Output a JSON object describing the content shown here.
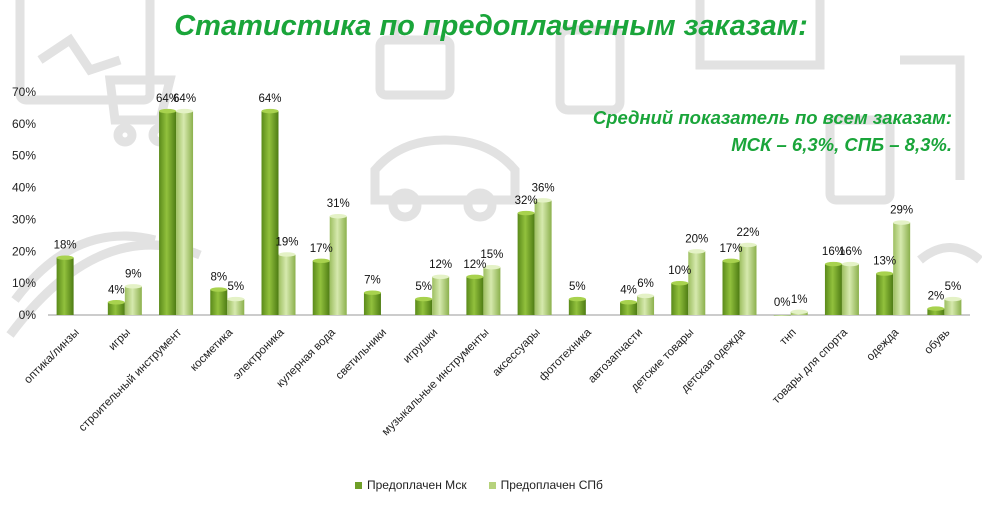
{
  "title": "Статистика по предоплаченным заказам:",
  "subnote": {
    "line1": "Средний показатель по всем заказам:",
    "line2": "МСК – 6,3%, СПБ – 8,3%."
  },
  "colors": {
    "title": "#1aa53a",
    "msk_top": "#92c13d",
    "msk_bottom": "#5a8a1a",
    "spb_top": "#d2e6a8",
    "spb_bottom": "#92b856",
    "background_art": "#d8d8d8"
  },
  "chart_data": {
    "type": "bar",
    "categories": [
      "оптика/линзы",
      "игры",
      "строительный инструмент",
      "косметика",
      "электроника",
      "кулерная вода",
      "светильники",
      "игрушки",
      "музыкальные инструменты",
      "аксессуары",
      "фототехника",
      "автозапчасти",
      "детские товары",
      "детская одежда",
      "тнп",
      "товары для спорта",
      "одежда",
      "обувь"
    ],
    "series": [
      {
        "name": "Предоплачен  Мск",
        "values": [
          18,
          4,
          64,
          8,
          64,
          17,
          7,
          5,
          12,
          32,
          5,
          4,
          10,
          17,
          0,
          16,
          13,
          2
        ]
      },
      {
        "name": "Предоплачен СПб",
        "values": [
          null,
          9,
          64,
          5,
          19,
          31,
          null,
          12,
          15,
          36,
          null,
          6,
          20,
          22,
          1,
          16,
          29,
          5
        ]
      }
    ],
    "ylim": [
      0,
      70
    ],
    "yticks": [
      "0%",
      "10%",
      "20%",
      "30%",
      "40%",
      "50%",
      "60%",
      "70%"
    ],
    "value_suffix": "%",
    "grid": false,
    "legend_position": "bottom"
  }
}
